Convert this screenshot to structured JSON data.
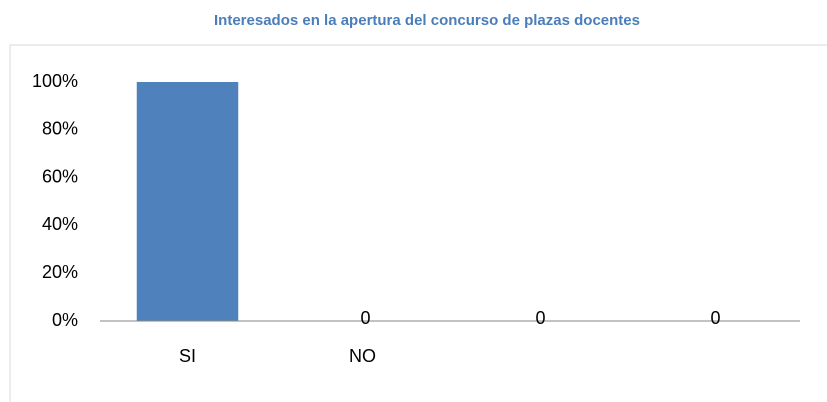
{
  "chart_data": {
    "type": "bar",
    "title": "Interesados en la apertura del concurso de plazas docentes",
    "categories": [
      "SI",
      "NO",
      null,
      null
    ],
    "values": [
      100,
      0,
      0,
      0
    ],
    "value_labels": [
      null,
      "0",
      "0",
      "0"
    ],
    "color": "#4f81bd",
    "ylim": [
      0,
      100
    ],
    "yticks": [
      {
        "value": 0,
        "label": "0%"
      },
      {
        "value": 20,
        "label": "20%"
      },
      {
        "value": 40,
        "label": "40%"
      },
      {
        "value": 60,
        "label": "60%"
      },
      {
        "value": 80,
        "label": "80%"
      },
      {
        "value": 100,
        "label": "100%"
      }
    ],
    "grid": false
  }
}
